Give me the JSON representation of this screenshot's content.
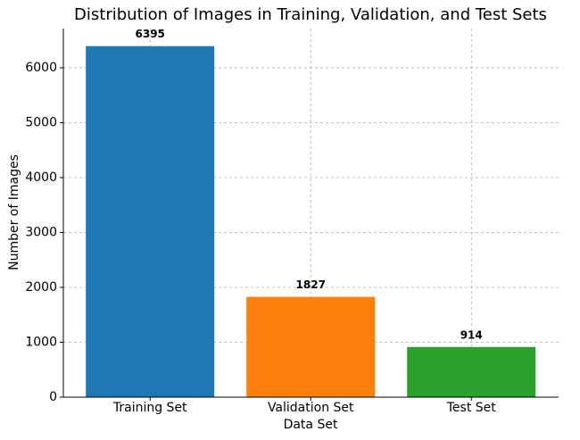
{
  "chart_data": {
    "type": "bar",
    "title": "Distribution of Images in Training, Validation, and Test Sets",
    "x_label": "Data Set",
    "y_label": "Number of Images",
    "categories": [
      "Training Set",
      "Validation Set",
      "Test Set"
    ],
    "values": [
      6395,
      1827,
      914
    ],
    "colors": [
      "#1f77b4",
      "#ff7f0e",
      "#2ca02c"
    ],
    "ylim": [
      0,
      6714.75
    ],
    "yticks": [
      0,
      1000,
      2000,
      3000,
      4000,
      5000,
      6000
    ],
    "grid": true
  }
}
